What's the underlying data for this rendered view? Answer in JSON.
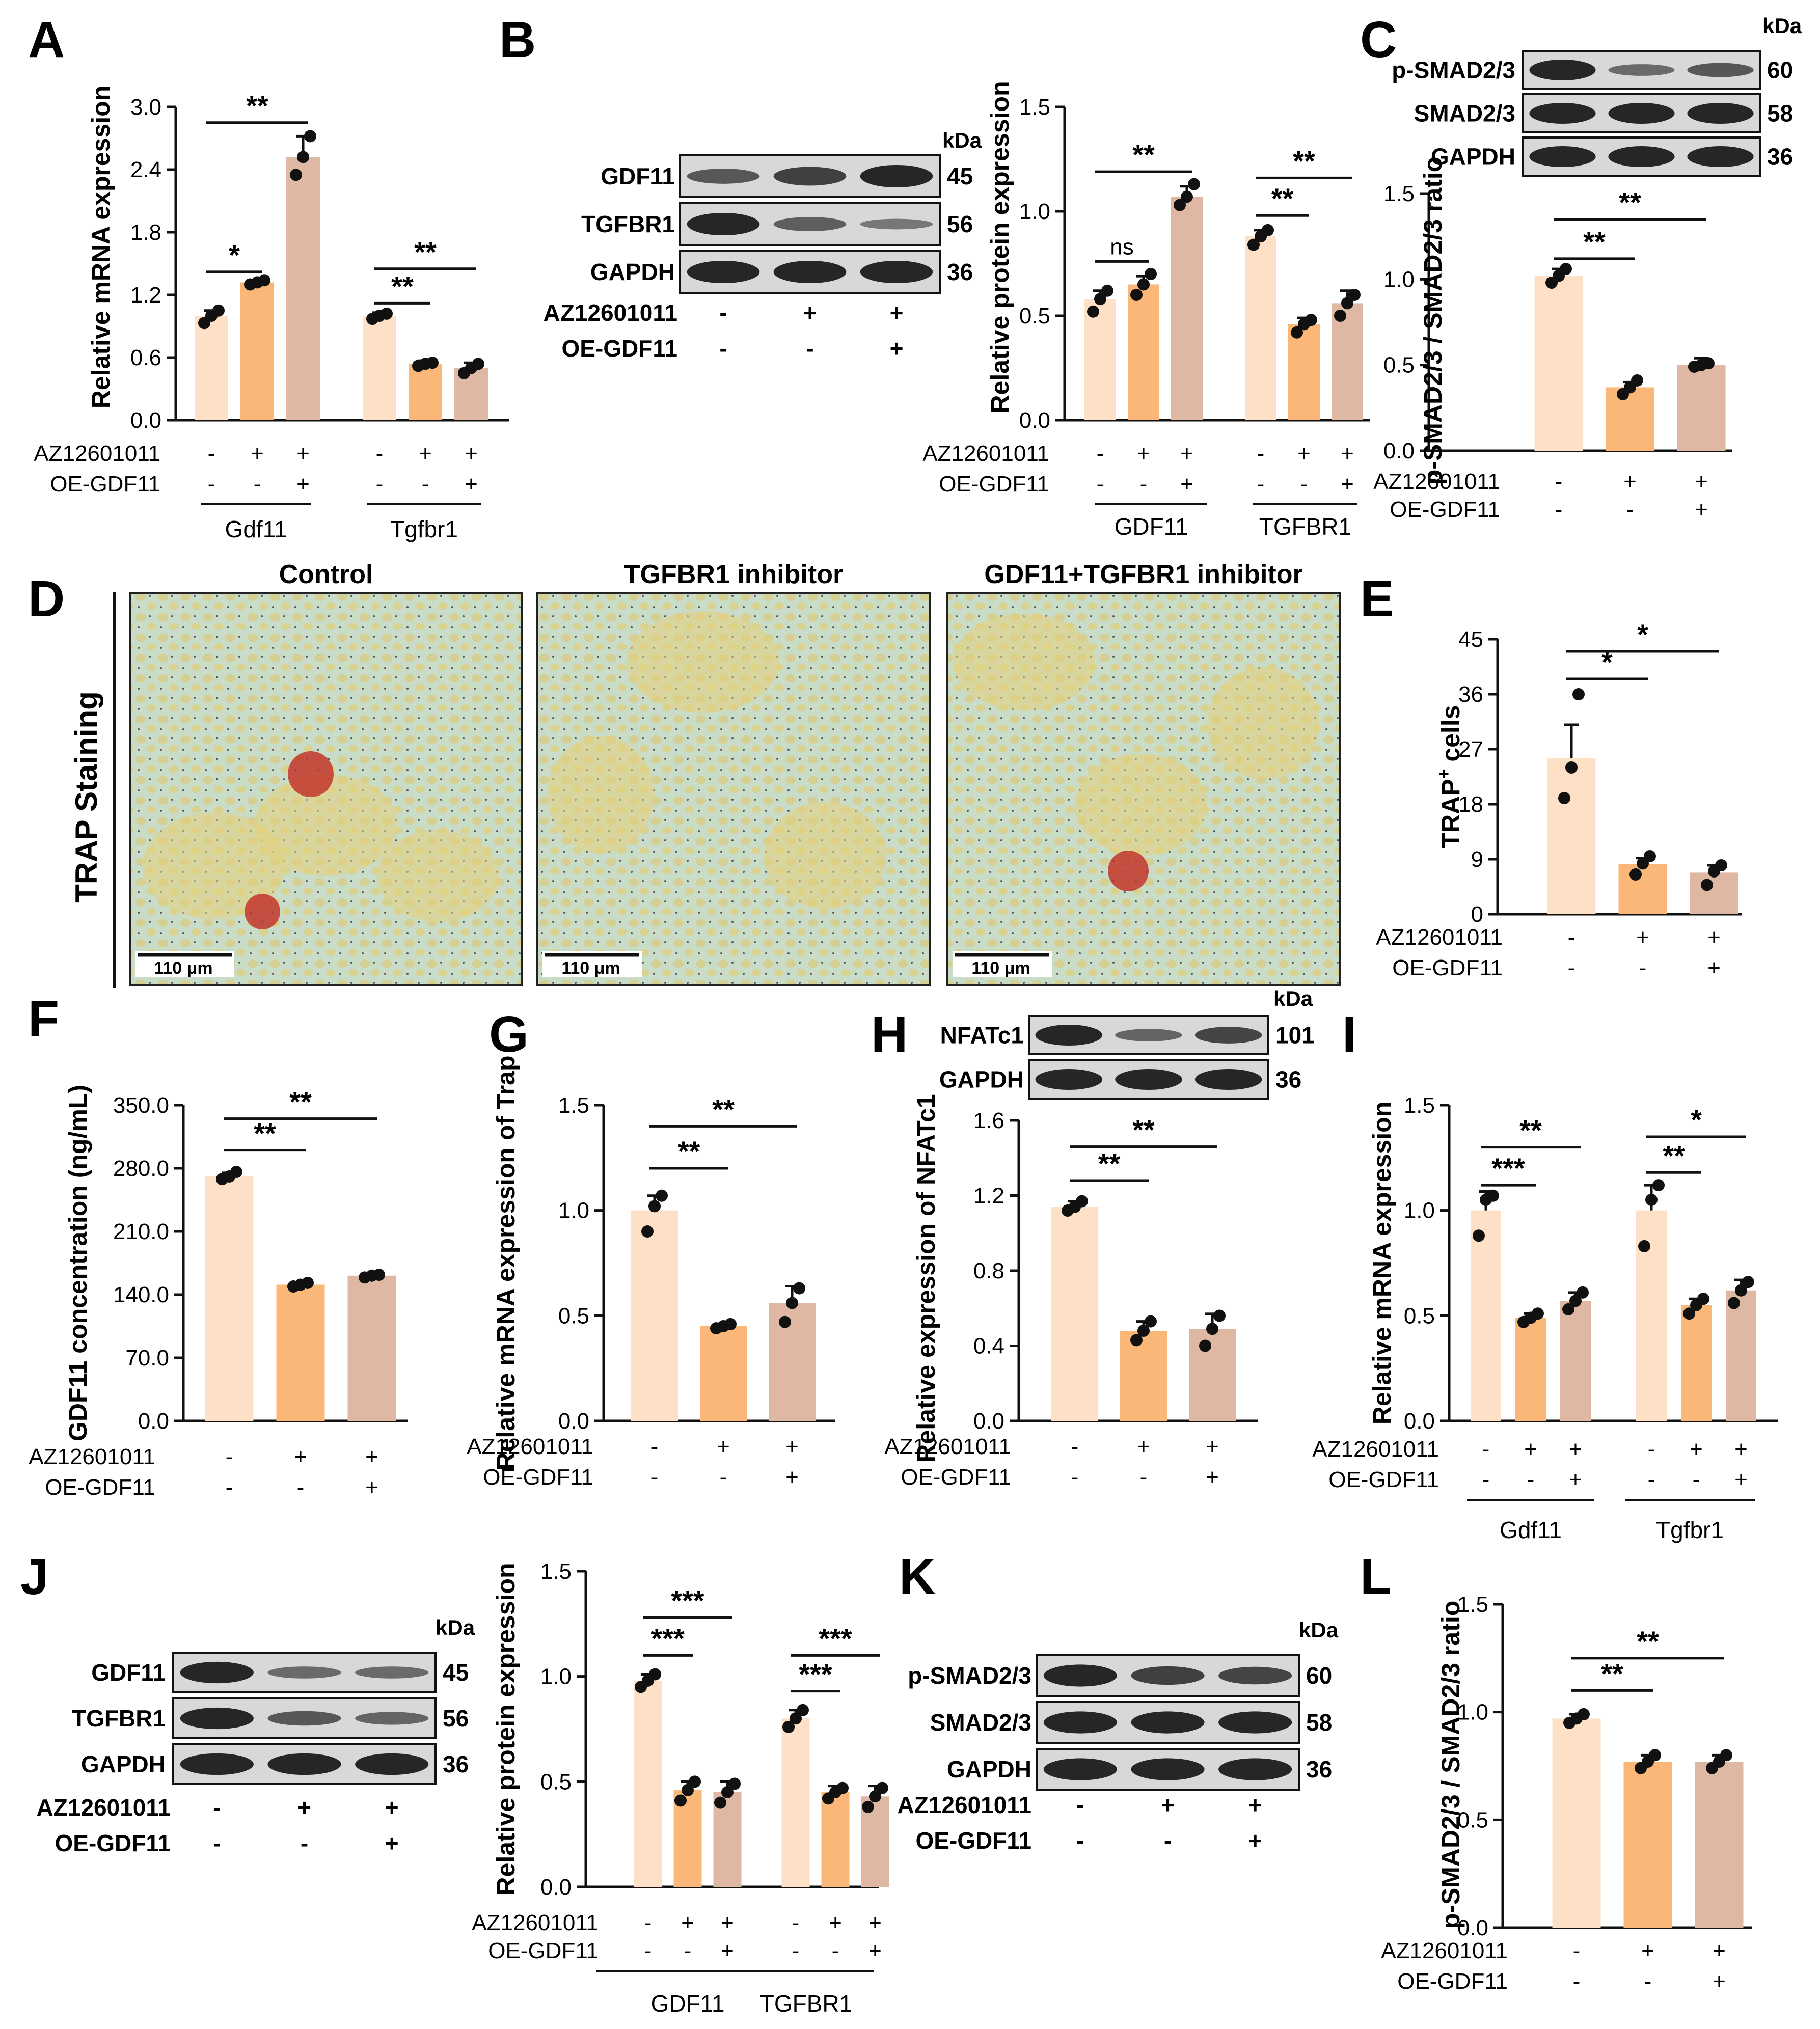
{
  "colors": {
    "control": "#fde0c5",
    "inhibitor": "#fbb777",
    "oe": "#dfb8a3",
    "axis": "#111111",
    "blot_bg": "#d8d8d8",
    "band": "#262626"
  },
  "treatment_rows": {
    "row1": "AZ12601011",
    "row2": "OE-GDF11",
    "az_signs": [
      "-",
      "+",
      "+"
    ],
    "oe_signs": [
      "-",
      "-",
      "+"
    ]
  },
  "panels": {
    "A": "A",
    "B": "B",
    "C": "C",
    "D": "D",
    "E": "E",
    "F": "F",
    "G": "G",
    "H": "H",
    "I": "I",
    "J": "J",
    "K": "K",
    "L": "L"
  },
  "blots": {
    "B": {
      "kda": "kDa",
      "rows": [
        {
          "label": "GDF11",
          "kda": "45"
        },
        {
          "label": "TGFBR1",
          "kda": "56"
        },
        {
          "label": "GAPDH",
          "kda": "36"
        }
      ]
    },
    "C": {
      "kda": "kDa",
      "rows": [
        {
          "label": "p-SMAD2/3",
          "kda": "60"
        },
        {
          "label": "SMAD2/3",
          "kda": "58"
        },
        {
          "label": "GAPDH",
          "kda": "36"
        }
      ]
    },
    "H": {
      "kda": "kDa",
      "rows": [
        {
          "label": "NFATc1",
          "kda": "101"
        },
        {
          "label": "GAPDH",
          "kda": "36"
        }
      ]
    },
    "J": {
      "kda": "kDa",
      "rows": [
        {
          "label": "GDF11",
          "kda": "45"
        },
        {
          "label": "TGFBR1",
          "kda": "56"
        },
        {
          "label": "GAPDH",
          "kda": "36"
        }
      ]
    },
    "K": {
      "kda": "kDa",
      "rows": [
        {
          "label": "p-SMAD2/3",
          "kda": "60"
        },
        {
          "label": "SMAD2/3",
          "kda": "58"
        },
        {
          "label": "GAPDH",
          "kda": "36"
        }
      ]
    }
  },
  "micrographs": {
    "side_label": "TRAP Staining",
    "titles": [
      "Control",
      "TGFBR1 inhibitor",
      "GDF11+TGFBR1 inhibitor"
    ],
    "scale_bar": "110 μm"
  },
  "chart_data": [
    {
      "panel": "A",
      "type": "bar",
      "ylabel": "Relative mRNA expression",
      "ylim": [
        0,
        3.0
      ],
      "yticks": [
        0.0,
        0.6,
        1.2,
        1.8,
        2.4,
        3.0
      ],
      "ytick_labels": [
        "0.0",
        "0.6",
        "1.2",
        "1.8",
        "2.4",
        "3.0"
      ],
      "groups": [
        {
          "name": "Gdf11",
          "values": [
            1.0,
            1.32,
            2.52
          ],
          "errors": [
            0.05,
            0.02,
            0.2
          ],
          "points": [
            [
              0.93,
              1.0,
              1.05
            ],
            [
              1.3,
              1.32,
              1.34
            ],
            [
              2.35,
              2.52,
              2.72
            ]
          ]
        },
        {
          "name": "Tgfbr1",
          "values": [
            1.0,
            0.54,
            0.5
          ],
          "errors": [
            0.03,
            0.03,
            0.05
          ],
          "points": [
            [
              0.97,
              1.0,
              1.02
            ],
            [
              0.52,
              0.54,
              0.55
            ],
            [
              0.45,
              0.5,
              0.54
            ]
          ]
        }
      ],
      "significance": [
        {
          "group": 0,
          "from": 0,
          "to": 1,
          "label": "*",
          "y": 1.42
        },
        {
          "group": 0,
          "from": 0,
          "to": 2,
          "label": "**",
          "y": 2.85
        },
        {
          "group": 1,
          "from": 0,
          "to": 1,
          "label": "**",
          "y": 1.12
        },
        {
          "group": 1,
          "from": 0,
          "to": 2,
          "label": "**",
          "y": 1.45
        }
      ]
    },
    {
      "panel": "B",
      "type": "bar",
      "ylabel": "Relative protein expression",
      "ylim": [
        0,
        1.5
      ],
      "yticks": [
        0.0,
        0.5,
        1.0,
        1.5
      ],
      "ytick_labels": [
        "0.0",
        "0.5",
        "1.0",
        "1.5"
      ],
      "groups": [
        {
          "name": "GDF11",
          "values": [
            0.58,
            0.65,
            1.07
          ],
          "errors": [
            0.04,
            0.04,
            0.05
          ],
          "points": [
            [
              0.52,
              0.58,
              0.62
            ],
            [
              0.6,
              0.65,
              0.7
            ],
            [
              1.03,
              1.07,
              1.13
            ]
          ]
        },
        {
          "name": "TGFBR1",
          "values": [
            0.88,
            0.46,
            0.56
          ],
          "errors": [
            0.03,
            0.03,
            0.06
          ],
          "points": [
            [
              0.84,
              0.88,
              0.91
            ],
            [
              0.42,
              0.46,
              0.48
            ],
            [
              0.5,
              0.56,
              0.6
            ]
          ]
        }
      ],
      "significance": [
        {
          "group": 0,
          "from": 0,
          "to": 1,
          "label": "ns",
          "y": 0.76
        },
        {
          "group": 0,
          "from": 0,
          "to": 2,
          "label": "**",
          "y": 1.19
        },
        {
          "group": 1,
          "from": 0,
          "to": 1,
          "label": "**",
          "y": 0.98
        },
        {
          "group": 1,
          "from": 0,
          "to": 2,
          "label": "**",
          "y": 1.16
        }
      ]
    },
    {
      "panel": "C",
      "type": "bar",
      "ylabel": "p-SMAD2/3 / SMAD2/3 ratio",
      "ylim": [
        0,
        1.5
      ],
      "yticks": [
        0.0,
        0.5,
        1.0,
        1.5
      ],
      "ytick_labels": [
        "0.0",
        "0.5",
        "1.0",
        "1.5"
      ],
      "groups": [
        {
          "name": "",
          "values": [
            1.02,
            0.37,
            0.5
          ],
          "errors": [
            0.04,
            0.03,
            0.04
          ],
          "points": [
            [
              0.98,
              1.02,
              1.06
            ],
            [
              0.33,
              0.37,
              0.41
            ],
            [
              0.49,
              0.5,
              0.51
            ]
          ]
        }
      ],
      "significance": [
        {
          "group": 0,
          "from": 0,
          "to": 1,
          "label": "**",
          "y": 1.12
        },
        {
          "group": 0,
          "from": 0,
          "to": 2,
          "label": "**",
          "y": 1.35
        }
      ]
    },
    {
      "panel": "E",
      "type": "bar",
      "ylabel": "TRAP+ cells",
      "ylim": [
        0,
        45
      ],
      "yticks": [
        0,
        9,
        18,
        27,
        36,
        45
      ],
      "ytick_labels": [
        "0",
        "9",
        "18",
        "27",
        "36",
        "45"
      ],
      "groups": [
        {
          "name": "",
          "values": [
            25.5,
            8.2,
            6.8
          ],
          "errors": [
            5.5,
            1.0,
            1.2
          ],
          "points": [
            [
              19,
              24,
              36
            ],
            [
              6.5,
              8.3,
              9.5
            ],
            [
              4.8,
              7.0,
              8.0
            ]
          ]
        }
      ],
      "significance": [
        {
          "group": 0,
          "from": 0,
          "to": 1,
          "label": "*",
          "y": 38.5
        },
        {
          "group": 0,
          "from": 0,
          "to": 2,
          "label": "*",
          "y": 43
        }
      ]
    },
    {
      "panel": "F",
      "type": "bar",
      "ylabel": "GDF11 concentration (ng/mL)",
      "ylim": [
        0,
        350
      ],
      "yticks": [
        0,
        70,
        140,
        210,
        280,
        350
      ],
      "ytick_labels": [
        "0.0",
        "70.0",
        "140.0",
        "210.0",
        "280.0",
        "350.0"
      ],
      "groups": [
        {
          "name": "",
          "values": [
            271,
            151,
            161
          ],
          "errors": [
            4,
            2,
            2
          ],
          "points": [
            [
              268,
              271,
              276
            ],
            [
              149,
              151,
              153
            ],
            [
              159,
              161,
              162
            ]
          ]
        }
      ],
      "significance": [
        {
          "group": 0,
          "from": 0,
          "to": 1,
          "label": "**",
          "y": 300
        },
        {
          "group": 0,
          "from": 0,
          "to": 2,
          "label": "**",
          "y": 335
        }
      ]
    },
    {
      "panel": "G",
      "type": "bar",
      "ylabel": "Relative mRNA expression of Trap",
      "ylim": [
        0,
        1.5
      ],
      "yticks": [
        0.0,
        0.5,
        1.0,
        1.5
      ],
      "ytick_labels": [
        "0.0",
        "0.5",
        "1.0",
        "1.5"
      ],
      "groups": [
        {
          "name": "",
          "values": [
            1.0,
            0.45,
            0.56
          ],
          "errors": [
            0.07,
            0.01,
            0.08
          ],
          "points": [
            [
              0.9,
              1.02,
              1.07
            ],
            [
              0.44,
              0.45,
              0.46
            ],
            [
              0.47,
              0.56,
              0.63
            ]
          ]
        }
      ],
      "significance": [
        {
          "group": 0,
          "from": 0,
          "to": 1,
          "label": "**",
          "y": 1.2
        },
        {
          "group": 0,
          "from": 0,
          "to": 2,
          "label": "**",
          "y": 1.4
        }
      ]
    },
    {
      "panel": "H",
      "type": "bar",
      "ylabel": "Relative expression of NFATc1",
      "ylim": [
        0,
        1.6
      ],
      "yticks": [
        0.0,
        0.4,
        0.8,
        1.2,
        1.6
      ],
      "ytick_labels": [
        "0.0",
        "0.4",
        "0.8",
        "1.2",
        "1.6"
      ],
      "groups": [
        {
          "name": "",
          "values": [
            1.14,
            0.48,
            0.49
          ],
          "errors": [
            0.03,
            0.05,
            0.08
          ],
          "points": [
            [
              1.12,
              1.14,
              1.17
            ],
            [
              0.43,
              0.48,
              0.53
            ],
            [
              0.4,
              0.49,
              0.56
            ]
          ]
        }
      ],
      "significance": [
        {
          "group": 0,
          "from": 0,
          "to": 1,
          "label": "**",
          "y": 1.28
        },
        {
          "group": 0,
          "from": 0,
          "to": 2,
          "label": "**",
          "y": 1.46
        }
      ]
    },
    {
      "panel": "I",
      "type": "bar",
      "ylabel": "Relative mRNA expression",
      "ylim": [
        0,
        1.5
      ],
      "yticks": [
        0.0,
        0.5,
        1.0,
        1.5
      ],
      "ytick_labels": [
        "0.0",
        "0.5",
        "1.0",
        "1.5"
      ],
      "groups": [
        {
          "name": "Gdf11",
          "values": [
            1.0,
            0.49,
            0.57
          ],
          "errors": [
            0.09,
            0.02,
            0.04
          ],
          "points": [
            [
              0.88,
              1.05,
              1.07
            ],
            [
              0.47,
              0.49,
              0.51
            ],
            [
              0.53,
              0.57,
              0.61
            ]
          ]
        },
        {
          "name": "Tgfbr1",
          "values": [
            1.0,
            0.55,
            0.62
          ],
          "errors": [
            0.12,
            0.03,
            0.05
          ],
          "points": [
            [
              0.83,
              1.05,
              1.12
            ],
            [
              0.51,
              0.55,
              0.58
            ],
            [
              0.56,
              0.62,
              0.66
            ]
          ]
        }
      ],
      "significance": [
        {
          "group": 0,
          "from": 0,
          "to": 1,
          "label": "***",
          "y": 1.12
        },
        {
          "group": 0,
          "from": 0,
          "to": 2,
          "label": "**",
          "y": 1.3
        },
        {
          "group": 1,
          "from": 0,
          "to": 1,
          "label": "**",
          "y": 1.18
        },
        {
          "group": 1,
          "from": 0,
          "to": 2,
          "label": "*",
          "y": 1.35
        }
      ]
    },
    {
      "panel": "J",
      "type": "bar",
      "ylabel": "Relative protein expression",
      "ylim": [
        0,
        1.5
      ],
      "yticks": [
        0.0,
        0.5,
        1.0,
        1.5
      ],
      "ytick_labels": [
        "0.0",
        "0.5",
        "1.0",
        "1.5"
      ],
      "groups": [
        {
          "name": "GDF11",
          "values": [
            0.98,
            0.46,
            0.45
          ],
          "errors": [
            0.03,
            0.04,
            0.05
          ],
          "points": [
            [
              0.95,
              0.98,
              1.01
            ],
            [
              0.41,
              0.46,
              0.5
            ],
            [
              0.4,
              0.45,
              0.49
            ]
          ]
        },
        {
          "name": "TGFBR1",
          "values": [
            0.8,
            0.45,
            0.43
          ],
          "errors": [
            0.04,
            0.03,
            0.05
          ],
          "points": [
            [
              0.76,
              0.8,
              0.84
            ],
            [
              0.42,
              0.45,
              0.47
            ],
            [
              0.38,
              0.43,
              0.47
            ]
          ]
        }
      ],
      "significance": [
        {
          "group": 0,
          "from": 0,
          "to": 1,
          "label": "***",
          "y": 1.1
        },
        {
          "group": 0,
          "from": 0,
          "to": 2,
          "label": "***",
          "y": 1.28
        },
        {
          "group": 1,
          "from": 0,
          "to": 1,
          "label": "***",
          "y": 0.93
        },
        {
          "group": 1,
          "from": 0,
          "to": 2,
          "label": "***",
          "y": 1.1
        }
      ]
    },
    {
      "panel": "L",
      "type": "bar",
      "ylabel": "p-SMAD2/3 / SMAD2/3 ratio",
      "ylim": [
        0,
        1.5
      ],
      "yticks": [
        0.0,
        0.5,
        1.0,
        1.5
      ],
      "ytick_labels": [
        "0.0",
        "0.5",
        "1.0",
        "1.5"
      ],
      "groups": [
        {
          "name": "",
          "values": [
            0.97,
            0.77,
            0.77
          ],
          "errors": [
            0.02,
            0.03,
            0.03
          ],
          "points": [
            [
              0.95,
              0.97,
              0.99
            ],
            [
              0.74,
              0.77,
              0.8
            ],
            [
              0.74,
              0.77,
              0.8
            ]
          ]
        }
      ],
      "significance": [
        {
          "group": 0,
          "from": 0,
          "to": 1,
          "label": "**",
          "y": 1.1
        },
        {
          "group": 0,
          "from": 0,
          "to": 2,
          "label": "**",
          "y": 1.25
        }
      ]
    }
  ]
}
